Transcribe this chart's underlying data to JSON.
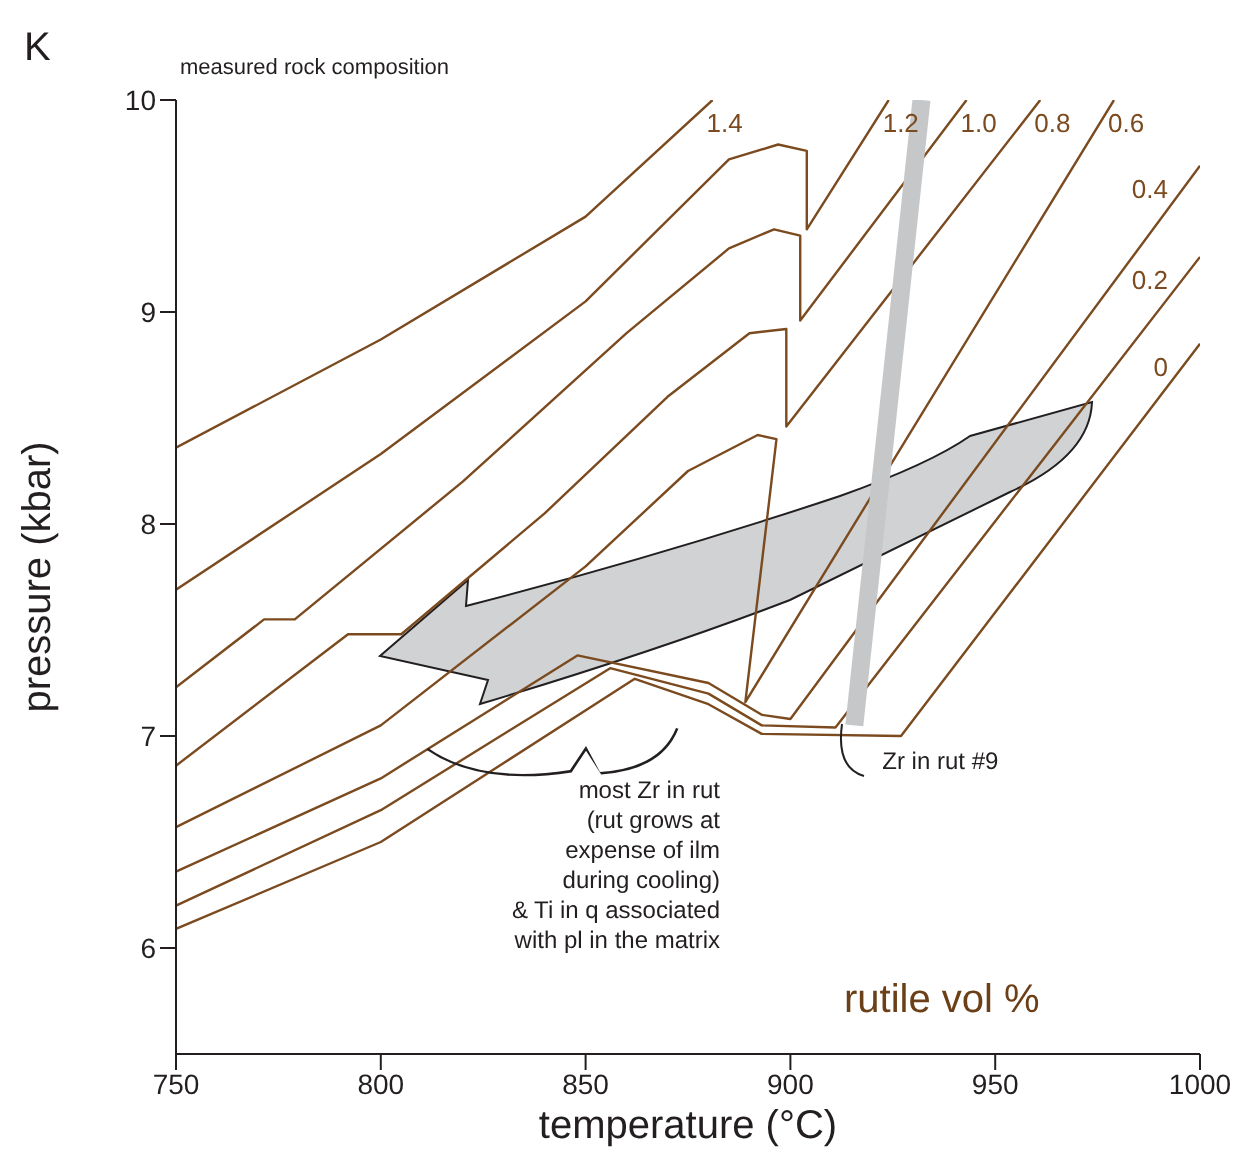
{
  "chart_data": {
    "type": "line",
    "xlabel": "temperature (°C)",
    "ylabel": "pressure (kbar)",
    "xlim": [
      750,
      1000
    ],
    "xticks": [
      750,
      800,
      850,
      900,
      950,
      1000
    ],
    "ylim": [
      5.5,
      10
    ],
    "yticks": [
      6,
      7,
      8,
      9,
      10
    ],
    "line_style": "solid",
    "annotations": [
      "K",
      "measured rock composition",
      "most Zr in rut\n(rut grows at\nexpense of ilm\nduring cooling)\n& Ti in q associated\nwith pl in the matrix",
      "rutile vol %"
    ],
    "series": [
      {
        "name": "1.4",
        "color": "#7b4a1f",
        "x": [
          750,
          800,
          850,
          881
        ],
        "values": [
          8.36,
          8.87,
          9.45,
          10
        ]
      },
      {
        "name": "1.2",
        "color": "#7b4a1f",
        "x": [
          750,
          800,
          850,
          885,
          897,
          904,
          904,
          924
        ],
        "values": [
          7.69,
          8.33,
          9.05,
          9.72,
          9.79,
          9.76,
          9.39,
          10
        ]
      },
      {
        "name": "1.0",
        "color": "#7b4a1f",
        "x": [
          750,
          771.5,
          779,
          820,
          860,
          885,
          896,
          902.4,
          902.4,
          943
        ],
        "values": [
          7.23,
          7.55,
          7.55,
          8.2,
          8.9,
          9.3,
          9.39,
          9.36,
          8.96,
          10
        ]
      },
      {
        "name": "0.8",
        "color": "#7b4a1f",
        "x": [
          750,
          792,
          805,
          840,
          870,
          890,
          899,
          899,
          961
        ],
        "values": [
          6.86,
          7.48,
          7.48,
          8.05,
          8.6,
          8.9,
          8.92,
          8.46,
          10
        ]
      },
      {
        "name": "0.6",
        "color": "#7b4a1f",
        "x": [
          750,
          800,
          850,
          875,
          892,
          896.6,
          889,
          979
        ],
        "values": [
          6.57,
          7.05,
          7.8,
          8.25,
          8.42,
          8.4,
          7.16,
          10
        ]
      },
      {
        "name": "0.4",
        "color": "#7b4a1f",
        "x": [
          750,
          800,
          848,
          880,
          893,
          900,
          1000
        ],
        "values": [
          6.36,
          6.8,
          7.38,
          7.25,
          7.1,
          7.08,
          9.69
        ]
      },
      {
        "name": "0.2",
        "color": "#7b4a1f",
        "x": [
          750,
          800,
          856,
          880,
          893,
          911,
          1000
        ],
        "values": [
          6.2,
          6.65,
          7.32,
          7.2,
          7.05,
          7.04,
          9.26
        ]
      },
      {
        "name": "0",
        "color": "#7b4a1f",
        "x": [
          750,
          800,
          862,
          880,
          893,
          927,
          1000
        ],
        "values": [
          6.09,
          6.5,
          7.27,
          7.15,
          7.01,
          7.0,
          8.85
        ]
      },
      {
        "name": "Zr in rut #9",
        "color": "#c6c7c9",
        "x": [
          932,
          915.6
        ],
        "values": [
          10,
          7.05
        ]
      }
    ]
  }
}
